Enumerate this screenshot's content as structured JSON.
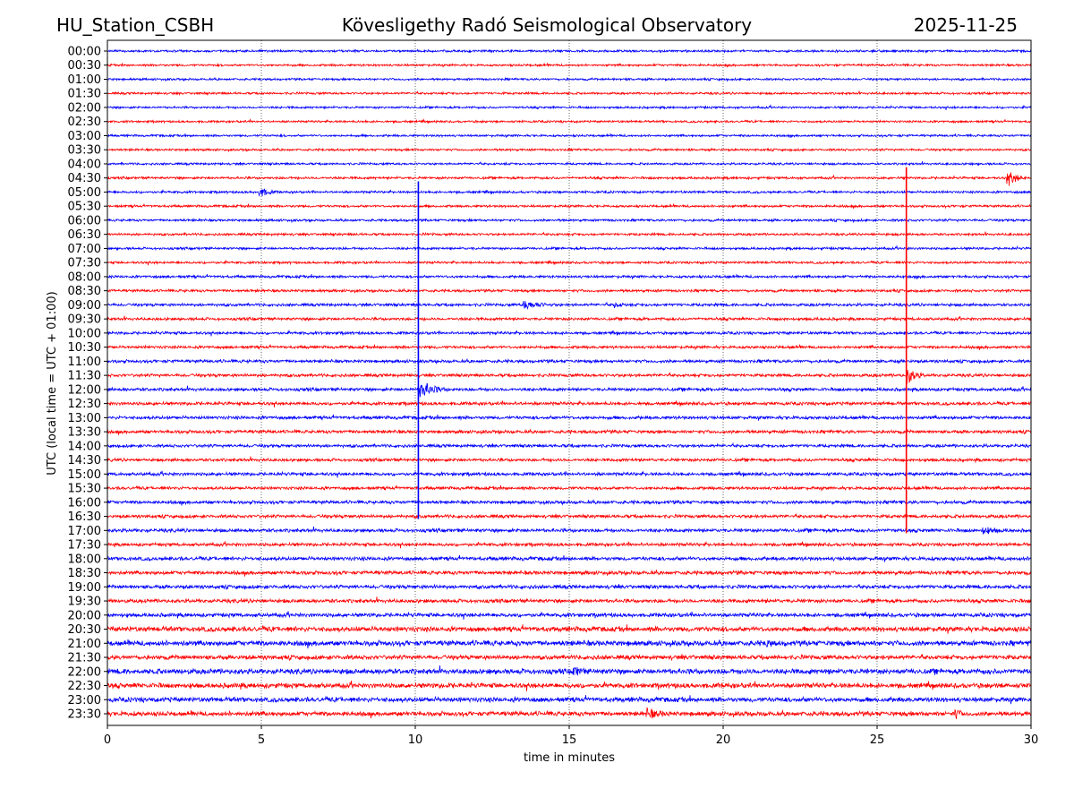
{
  "header": {
    "station": "HU_Station_CSBH",
    "observatory": "Kövesligethy Radó Seismological Observatory",
    "date": "2025-11-25"
  },
  "chart_data": {
    "type": "line",
    "title": "Kövesligethy Radó Seismological Observatory",
    "xlabel": "time in minutes",
    "ylabel": "UTC (local time = UTC + 01:00)",
    "xlim": [
      0,
      30
    ],
    "xticks": [
      "0",
      "5",
      "10",
      "15",
      "20",
      "25",
      "30"
    ],
    "grid": "vertical dotted lines at 5-minute intervals",
    "colors": [
      "#0000ff",
      "#ff0000"
    ],
    "traces": [
      {
        "label": "00:00",
        "amp": 1.0
      },
      {
        "label": "00:30",
        "amp": 1.0
      },
      {
        "label": "01:00",
        "amp": 1.0
      },
      {
        "label": "01:30",
        "amp": 1.0
      },
      {
        "label": "02:00",
        "amp": 1.0
      },
      {
        "label": "02:30",
        "amp": 1.0
      },
      {
        "label": "03:00",
        "amp": 1.0
      },
      {
        "label": "03:30",
        "amp": 1.0
      },
      {
        "label": "04:00",
        "amp": 1.0
      },
      {
        "label": "04:30",
        "amp": 1.1
      },
      {
        "label": "05:00",
        "amp": 1.1
      },
      {
        "label": "05:30",
        "amp": 1.1
      },
      {
        "label": "06:00",
        "amp": 1.1
      },
      {
        "label": "06:30",
        "amp": 1.1
      },
      {
        "label": "07:00",
        "amp": 1.1
      },
      {
        "label": "07:30",
        "amp": 1.1
      },
      {
        "label": "08:00",
        "amp": 1.2
      },
      {
        "label": "08:30",
        "amp": 1.2
      },
      {
        "label": "09:00",
        "amp": 1.3
      },
      {
        "label": "09:30",
        "amp": 1.3
      },
      {
        "label": "10:00",
        "amp": 1.3
      },
      {
        "label": "10:30",
        "amp": 1.3
      },
      {
        "label": "11:00",
        "amp": 1.4
      },
      {
        "label": "11:30",
        "amp": 1.4
      },
      {
        "label": "12:00",
        "amp": 1.5
      },
      {
        "label": "12:30",
        "amp": 1.5
      },
      {
        "label": "13:00",
        "amp": 1.5
      },
      {
        "label": "13:30",
        "amp": 1.5
      },
      {
        "label": "14:00",
        "amp": 1.4
      },
      {
        "label": "14:30",
        "amp": 1.4
      },
      {
        "label": "15:00",
        "amp": 1.5
      },
      {
        "label": "15:30",
        "amp": 1.4
      },
      {
        "label": "16:00",
        "amp": 1.5
      },
      {
        "label": "16:30",
        "amp": 1.5
      },
      {
        "label": "17:00",
        "amp": 1.6
      },
      {
        "label": "17:30",
        "amp": 1.5
      },
      {
        "label": "18:00",
        "amp": 1.7
      },
      {
        "label": "18:30",
        "amp": 1.7
      },
      {
        "label": "19:00",
        "amp": 1.7
      },
      {
        "label": "19:30",
        "amp": 1.7
      },
      {
        "label": "20:00",
        "amp": 1.8
      },
      {
        "label": "20:30",
        "amp": 2.3
      },
      {
        "label": "21:00",
        "amp": 2.4
      },
      {
        "label": "21:30",
        "amp": 2.0
      },
      {
        "label": "22:00",
        "amp": 2.4
      },
      {
        "label": "22:30",
        "amp": 2.3
      },
      {
        "label": "23:00",
        "amp": 2.2
      },
      {
        "label": "23:30",
        "amp": 2.1
      }
    ],
    "bursts": [
      {
        "trace": "05:00",
        "minute": 4.9,
        "duration": 0.8,
        "amp": 5
      },
      {
        "trace": "04:30",
        "minute": 29.2,
        "duration": 0.8,
        "amp": 8
      },
      {
        "trace": "09:00",
        "minute": 13.5,
        "duration": 1.2,
        "amp": 4
      },
      {
        "trace": "09:00",
        "minute": 16.4,
        "duration": 0.6,
        "amp": 3
      },
      {
        "trace": "12:00",
        "minute": 10.1,
        "duration": 1.1,
        "amp": 9
      },
      {
        "trace": "11:30",
        "minute": 25.95,
        "duration": 0.7,
        "amp": 9
      },
      {
        "trace": "17:00",
        "minute": 28.4,
        "duration": 1.0,
        "amp": 3
      },
      {
        "trace": "21:00",
        "minute": 21.4,
        "duration": 0.3,
        "amp": 5
      },
      {
        "trace": "22:00",
        "minute": 15.1,
        "duration": 0.6,
        "amp": 4
      },
      {
        "trace": "23:30",
        "minute": 17.5,
        "duration": 1.0,
        "amp": 4
      },
      {
        "trace": "23:30",
        "minute": 27.5,
        "duration": 0.4,
        "amp": 5
      }
    ],
    "spikes": [
      {
        "minute": 10.1,
        "from": "05:00",
        "to": "16:30",
        "color": "#0000ff"
      },
      {
        "minute": 25.95,
        "from": "04:30",
        "to": "17:00",
        "color": "#ff0000"
      }
    ]
  }
}
